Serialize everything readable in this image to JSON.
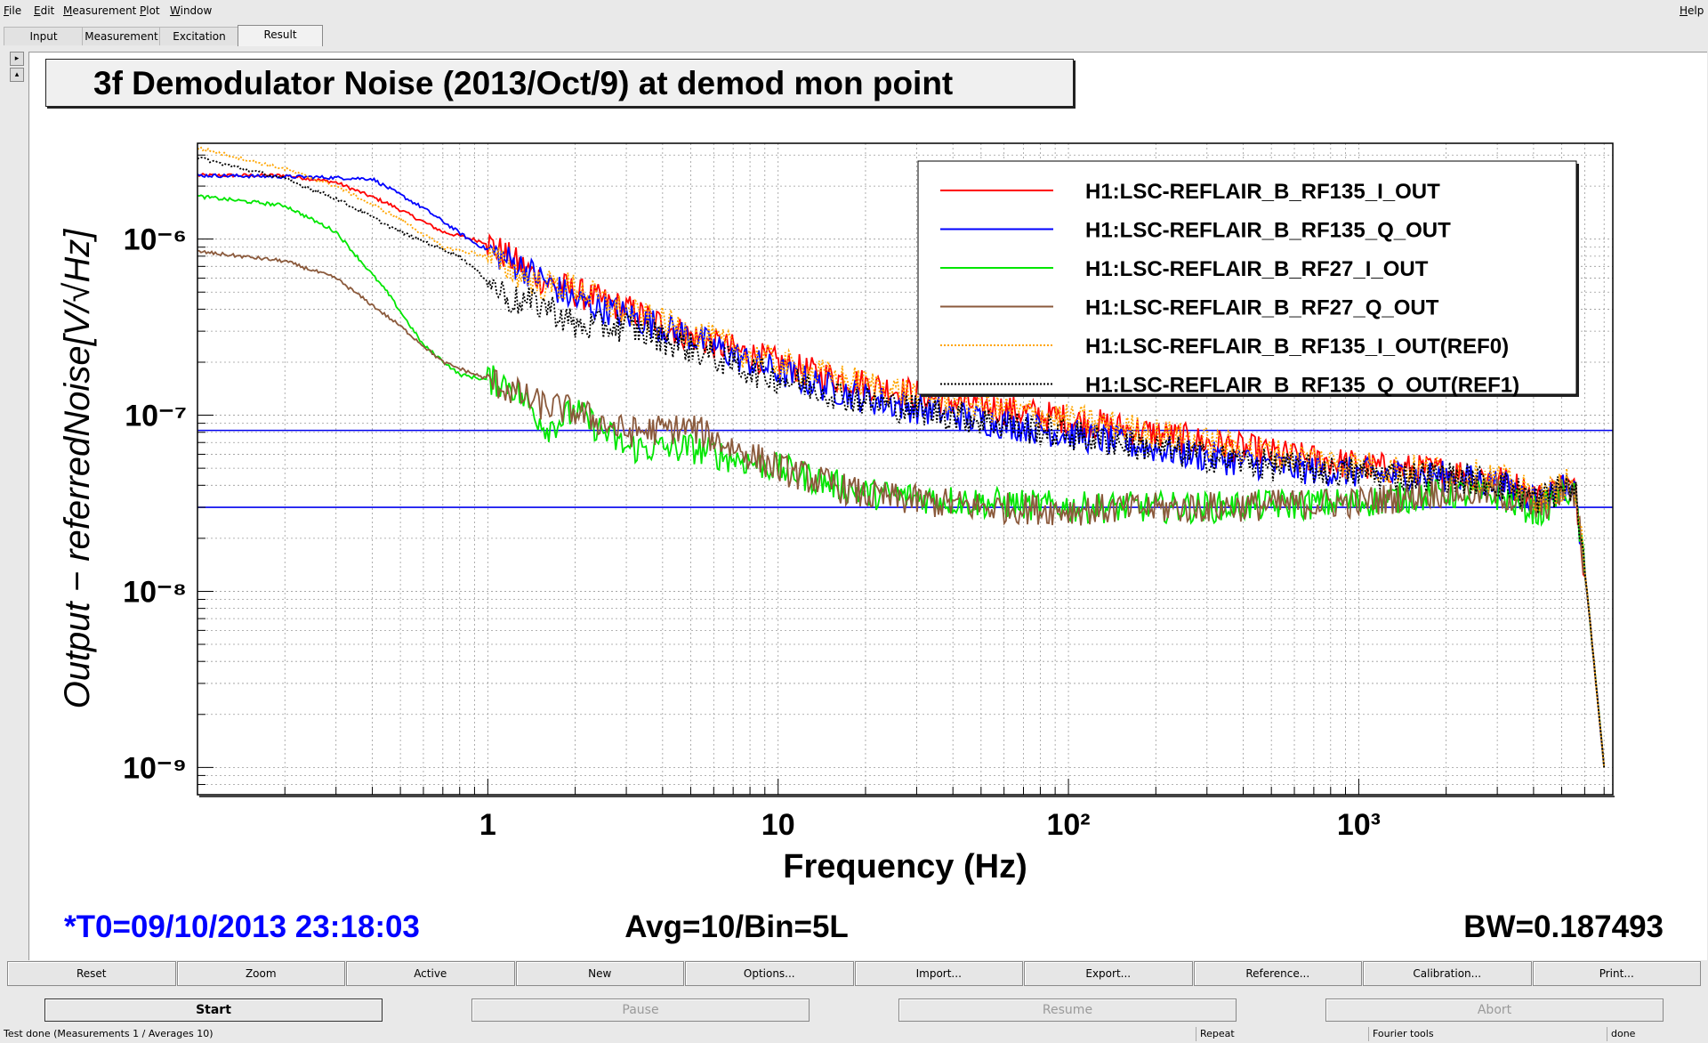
{
  "menu": [
    "File",
    "Edit",
    "Measurement",
    "Plot",
    "Window"
  ],
  "help": "Help",
  "tabs": [
    "Input",
    "Measurement",
    "Excitation",
    "Result"
  ],
  "active_tab": "Result",
  "plot": {
    "title": "3f Demodulator Noise (2013/Oct/9) at demod mon point",
    "t0": "*T0=09/10/2013 23:18:03",
    "avg": "Avg=10/Bin=5L",
    "bw": "BW=0.187493",
    "colors": {
      "t0": "#0000ff",
      "text": "#000000"
    }
  },
  "chart_data": {
    "type": "line",
    "xscale": "log",
    "yscale": "log",
    "xlim": [
      0.1,
      7500
    ],
    "ylim": [
      7e-10,
      3.5e-06
    ],
    "xlabel": "Frequency (Hz)",
    "ylabel": "Output − referredNoise[V/√Hz]",
    "xticks": [
      "1",
      "10",
      "10²",
      "10³"
    ],
    "yticks": [
      "10⁻⁶",
      "10⁻⁷",
      "10⁻⁸",
      "10⁻⁹"
    ],
    "grid": true,
    "legend_position": "top-right",
    "hlines": [
      {
        "y": 8.2e-08,
        "color": "#0000ee"
      },
      {
        "y": 3e-08,
        "color": "#0000ee"
      }
    ],
    "series": [
      {
        "name": "H1:LSC-REFLAIR_B_RF135_I_OUT",
        "color": "#ff0000",
        "style": "solid",
        "points": [
          [
            0.1,
            2.3e-06
          ],
          [
            0.2,
            2.3e-06
          ],
          [
            0.3,
            2.1e-06
          ],
          [
            0.45,
            1.6e-06
          ],
          [
            0.7,
            1.1e-06
          ],
          [
            1.0,
            9.5e-07
          ],
          [
            1.5,
            6e-07
          ],
          [
            2,
            5e-07
          ],
          [
            3,
            4e-07
          ],
          [
            5,
            2.8e-07
          ],
          [
            8,
            2.2e-07
          ],
          [
            12,
            1.8e-07
          ],
          [
            20,
            1.5e-07
          ],
          [
            40,
            1.2e-07
          ],
          [
            80,
            1e-07
          ],
          [
            150,
            8.5e-08
          ],
          [
            300,
            7e-08
          ],
          [
            600,
            5.8e-08
          ],
          [
            1200,
            5e-08
          ],
          [
            2000,
            4.8e-08
          ],
          [
            3000,
            4.4e-08
          ],
          [
            4200,
            3.4e-08
          ],
          [
            5200,
            4.1e-08
          ],
          [
            5600,
            3.6e-08
          ],
          [
            6200,
            8e-09
          ],
          [
            7000,
            1e-09
          ]
        ]
      },
      {
        "name": "H1:LSC-REFLAIR_B_RF135_Q_OUT",
        "color": "#0000ff",
        "style": "solid",
        "points": [
          [
            0.1,
            2.3e-06
          ],
          [
            0.25,
            2.25e-06
          ],
          [
            0.4,
            2.2e-06
          ],
          [
            0.6,
            1.5e-06
          ],
          [
            0.9,
            9.5e-07
          ],
          [
            1.3,
            7e-07
          ],
          [
            2,
            4.5e-07
          ],
          [
            3,
            3.7e-07
          ],
          [
            5,
            2.8e-07
          ],
          [
            8,
            2e-07
          ],
          [
            12,
            1.6e-07
          ],
          [
            20,
            1.25e-07
          ],
          [
            40,
            1e-07
          ],
          [
            80,
            8.3e-08
          ],
          [
            150,
            7e-08
          ],
          [
            300,
            5.8e-08
          ],
          [
            600,
            5e-08
          ],
          [
            1200,
            4.6e-08
          ],
          [
            2000,
            4.5e-08
          ],
          [
            3000,
            4.1e-08
          ],
          [
            4200,
            3.3e-08
          ],
          [
            5200,
            4e-08
          ],
          [
            5600,
            3.5e-08
          ],
          [
            6200,
            8e-09
          ],
          [
            7000,
            1e-09
          ]
        ]
      },
      {
        "name": "H1:LSC-REFLAIR_B_RF27_I_OUT",
        "color": "#00e600",
        "style": "solid",
        "points": [
          [
            0.1,
            1.75e-06
          ],
          [
            0.2,
            1.55e-06
          ],
          [
            0.3,
            1.1e-06
          ],
          [
            0.45,
            5e-07
          ],
          [
            0.6,
            2.5e-07
          ],
          [
            0.8,
            1.7e-07
          ],
          [
            1.2,
            1.5e-07
          ],
          [
            1.6,
            8.5e-08
          ],
          [
            2,
            1.05e-07
          ],
          [
            3,
            6.5e-08
          ],
          [
            5,
            6.5e-08
          ],
          [
            10,
            5e-08
          ],
          [
            20,
            3.6e-08
          ],
          [
            50,
            3.2e-08
          ],
          [
            100,
            3e-08
          ],
          [
            300,
            3e-08
          ],
          [
            1000,
            3.2e-08
          ],
          [
            2000,
            3.6e-08
          ],
          [
            3000,
            3.5e-08
          ],
          [
            4200,
            2.8e-08
          ],
          [
            5200,
            3.8e-08
          ],
          [
            5600,
            3.3e-08
          ],
          [
            6200,
            8e-09
          ],
          [
            7000,
            1e-09
          ]
        ]
      },
      {
        "name": "H1:LSC-REFLAIR_B_RF27_Q_OUT",
        "color": "#8b5a3c",
        "style": "solid",
        "points": [
          [
            0.1,
            8.5e-07
          ],
          [
            0.2,
            7.5e-07
          ],
          [
            0.3,
            6e-07
          ],
          [
            0.5,
            3.2e-07
          ],
          [
            0.7,
            2e-07
          ],
          [
            1.0,
            1.6e-07
          ],
          [
            1.5,
            1.15e-07
          ],
          [
            2,
            1.05e-07
          ],
          [
            3,
            8e-08
          ],
          [
            5,
            8.5e-08
          ],
          [
            10,
            5e-08
          ],
          [
            20,
            3.5e-08
          ],
          [
            50,
            3e-08
          ],
          [
            100,
            2.9e-08
          ],
          [
            300,
            3e-08
          ],
          [
            1000,
            3.2e-08
          ],
          [
            2000,
            3.7e-08
          ],
          [
            3000,
            3.6e-08
          ],
          [
            4200,
            2.9e-08
          ],
          [
            5200,
            3.9e-08
          ],
          [
            5600,
            3.4e-08
          ],
          [
            6200,
            8e-09
          ],
          [
            7000,
            1e-09
          ]
        ]
      },
      {
        "name": "H1:LSC-REFLAIR_B_RF135_I_OUT(REF0)",
        "color": "#ffa500",
        "style": "dotted",
        "points": [
          [
            0.1,
            3.3e-06
          ],
          [
            0.2,
            2.5e-06
          ],
          [
            0.3,
            2e-06
          ],
          [
            0.5,
            1.3e-06
          ],
          [
            0.7,
            9e-07
          ],
          [
            1.0,
            8e-07
          ],
          [
            1.5,
            5.5e-07
          ],
          [
            2,
            5.3e-07
          ],
          [
            3,
            3.8e-07
          ],
          [
            5,
            3e-07
          ],
          [
            8,
            2.2e-07
          ],
          [
            12,
            1.8e-07
          ],
          [
            20,
            1.5e-07
          ],
          [
            40,
            1.2e-07
          ],
          [
            80,
            1e-07
          ],
          [
            150,
            8.6e-08
          ],
          [
            300,
            7e-08
          ],
          [
            600,
            5.8e-08
          ],
          [
            1200,
            5e-08
          ],
          [
            2000,
            4.8e-08
          ],
          [
            3000,
            4.4e-08
          ],
          [
            4200,
            3.4e-08
          ],
          [
            5200,
            4.1e-08
          ],
          [
            5600,
            3.6e-08
          ],
          [
            6200,
            8e-09
          ],
          [
            7000,
            1e-09
          ]
        ]
      },
      {
        "name": "H1:LSC-REFLAIR_B_RF135_Q_OUT(REF1)",
        "color": "#000000",
        "style": "dotted",
        "points": [
          [
            0.1,
            2.9e-06
          ],
          [
            0.2,
            2.2e-06
          ],
          [
            0.3,
            1.7e-06
          ],
          [
            0.5,
            1.1e-06
          ],
          [
            0.8,
            8e-07
          ],
          [
            1.2,
            4.5e-07
          ],
          [
            1.6,
            4.2e-07
          ],
          [
            2,
            3.2e-07
          ],
          [
            3,
            3.2e-07
          ],
          [
            5,
            2.4e-07
          ],
          [
            8,
            1.8e-07
          ],
          [
            12,
            1.5e-07
          ],
          [
            20,
            1.2e-07
          ],
          [
            40,
            1e-07
          ],
          [
            80,
            8.2e-08
          ],
          [
            150,
            7e-08
          ],
          [
            300,
            5.8e-08
          ],
          [
            600,
            5e-08
          ],
          [
            1200,
            4.6e-08
          ],
          [
            2000,
            4.5e-08
          ],
          [
            3000,
            4.1e-08
          ],
          [
            4200,
            3.3e-08
          ],
          [
            5200,
            4e-08
          ],
          [
            5600,
            3.5e-08
          ],
          [
            6200,
            8e-09
          ],
          [
            7000,
            1e-09
          ]
        ]
      }
    ]
  },
  "buttons": [
    "Reset",
    "Zoom",
    "Active",
    "New",
    "Options...",
    "Import...",
    "Export...",
    "Reference...",
    "Calibration...",
    "Print..."
  ],
  "controls": {
    "start": "Start",
    "pause": "Pause",
    "resume": "Resume",
    "abort": "Abort"
  },
  "status": {
    "message": "Test done (Measurements 1 / Averages 10)",
    "repeat": "Repeat",
    "tools": "Fourier tools",
    "state": "done"
  }
}
